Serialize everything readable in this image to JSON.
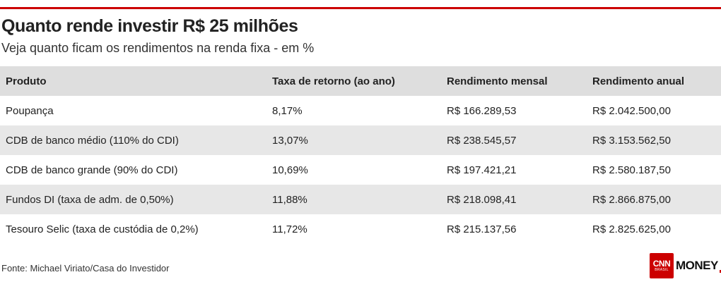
{
  "colors": {
    "accent": "#cc0000",
    "header_bg": "#dedede",
    "row_alt_bg": "#e7e7e7",
    "row_bg": "#ffffff"
  },
  "title": "Quanto rende investir R$ 25 milhões",
  "subtitle": "Veja quanto ficam os rendimentos na renda fixa - em %",
  "table": {
    "headers": [
      "Produto",
      "Taxa de retorno (ao ano)",
      "Rendimento mensal",
      "Rendimento anual"
    ],
    "rows": [
      [
        "Poupança",
        "8,17%",
        "R$ 166.289,53",
        "R$ 2.042.500,00"
      ],
      [
        "CDB de banco médio (110% do CDI)",
        "13,07%",
        "R$ 238.545,57",
        "R$ 3.153.562,50"
      ],
      [
        "CDB de banco grande (90% do CDI)",
        "10,69%",
        "R$ 197.421,21",
        "R$ 2.580.187,50"
      ],
      [
        "Fundos DI (taxa de adm. de 0,50%)",
        "11,88%",
        "R$ 218.098,41",
        "R$ 2.866.875,00"
      ],
      [
        "Tesouro Selic (taxa de custódia de 0,2%)",
        "11,72%",
        "R$ 215.137,56",
        "R$ 2.825.625,00"
      ]
    ]
  },
  "source": "Fonte: Michael Viriato/Casa do Investidor",
  "logo": {
    "cnn": "CNN",
    "brasil": "BRASIL",
    "money": "MONEY"
  }
}
